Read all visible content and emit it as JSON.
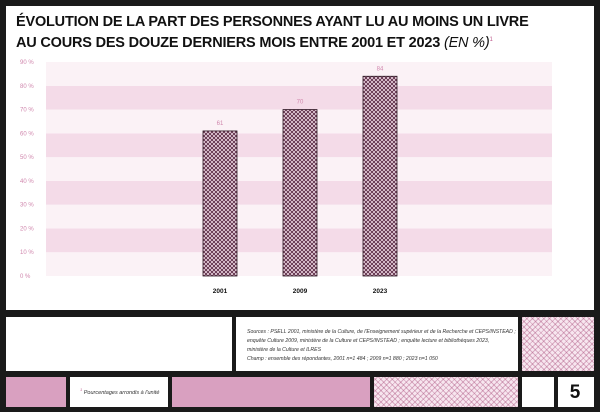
{
  "header": {
    "title_line1": "ÉVOLUTION DE LA PART DES PERSONNES AYANT LU AU MOINS UN LIVRE",
    "title_line2": "AU COURS DES DOUZE DERNIERS MOIS ENTRE 2001 ET 2023",
    "title_unit": "(EN %)",
    "title_note_ref": "1"
  },
  "chart_data": {
    "type": "bar",
    "categories": [
      "2001",
      "2009",
      "2023"
    ],
    "values": [
      61,
      70,
      84
    ],
    "value_labels": [
      "61",
      "70",
      "84"
    ],
    "ylim": [
      0,
      90
    ],
    "yticks": [
      "0 %",
      "10 %",
      "20 %",
      "30 %",
      "40 %",
      "50 %",
      "60 %",
      "70 %",
      "80 %",
      "90 %"
    ],
    "grid": "alternating horizontal bands",
    "colors": {
      "band_dark": "#f4dbe8",
      "band_light": "#fbf2f6",
      "bar_hatch": "#5a2a44",
      "tick_text": "#d087ad"
    }
  },
  "sources": {
    "lines": [
      "Sources : PSELL 2001, ministère de la Culture, de l'Enseignement supérieur et de la Recherche et CEPS/INSTEAD ;",
      "enquête Culture 2009, ministère de la Culture et CEPS/INSTEAD ; enquête lecture et bibliothèques 2023,",
      "ministère de la Culture et ILRES",
      "Champ : ensemble des répondantes, 2001 n=1 484 ; 2009 n=1 880 ; 2023 n=1 050"
    ]
  },
  "footnote": {
    "ref": "1",
    "text": "Pourcentages arrondis à l'unité"
  },
  "page": {
    "number": "5"
  }
}
